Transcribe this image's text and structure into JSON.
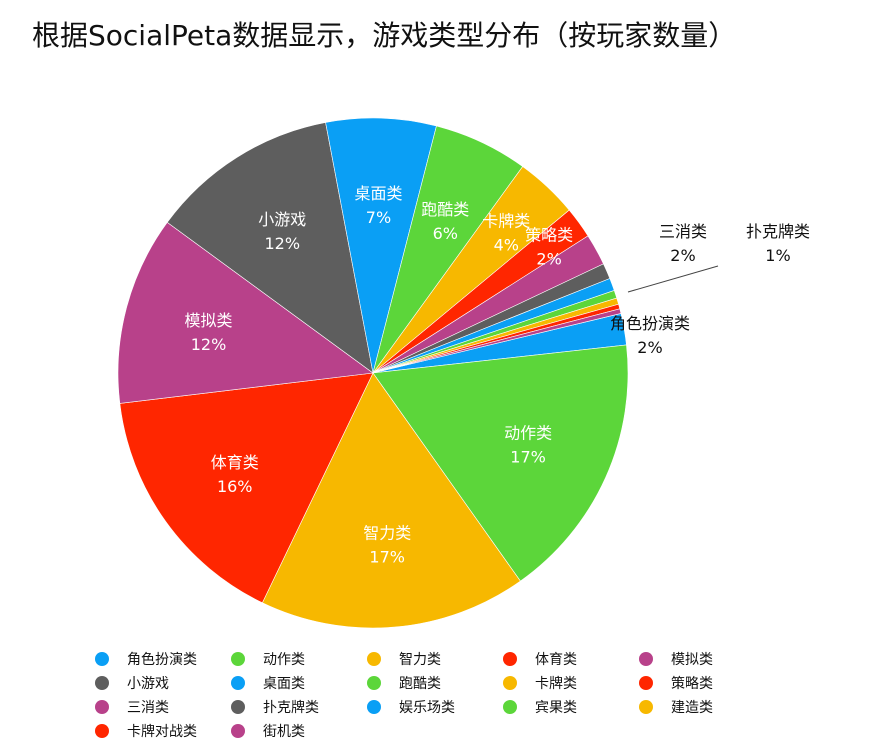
{
  "title": "根据SocialPeta数据显示，游戏类型分布（按玩家数量）",
  "chart_data": {
    "type": "pie",
    "slices": [
      {
        "name": "角色扮演类",
        "value": 2,
        "label": "2%",
        "color": "#0a9ff5"
      },
      {
        "name": "动作类",
        "value": 17,
        "label": "17%",
        "color": "#5cd63a"
      },
      {
        "name": "智力类",
        "value": 17,
        "label": "17%",
        "color": "#f7b800"
      },
      {
        "name": "体育类",
        "value": 16,
        "label": "16%",
        "color": "#ff2600"
      },
      {
        "name": "模拟类",
        "value": 12,
        "label": "12%",
        "color": "#b8418a"
      },
      {
        "name": "小游戏",
        "value": 12,
        "label": "12%",
        "color": "#5e5e5e"
      },
      {
        "name": "桌面类",
        "value": 7,
        "label": "7%",
        "color": "#0a9ff5"
      },
      {
        "name": "跑酷类",
        "value": 6,
        "label": "6%",
        "color": "#5cd63a"
      },
      {
        "name": "卡牌类",
        "value": 4,
        "label": "4%",
        "color": "#f7b800"
      },
      {
        "name": "策略类",
        "value": 2,
        "label": "2%",
        "color": "#ff2600"
      },
      {
        "name": "三消类",
        "value": 2,
        "label": "2%",
        "color": "#b8418a"
      },
      {
        "name": "扑克牌类",
        "value": 1,
        "label": "1%",
        "color": "#5e5e5e"
      },
      {
        "name": "娱乐场类",
        "value": 0.8,
        "label": "",
        "color": "#0a9ff5"
      },
      {
        "name": "宾果类",
        "value": 0.5,
        "label": "",
        "color": "#5cd63a"
      },
      {
        "name": "建造类",
        "value": 0.4,
        "label": "",
        "color": "#f7b800"
      },
      {
        "name": "卡牌对战类",
        "value": 0.3,
        "label": "",
        "color": "#ff2600"
      },
      {
        "name": "街机类",
        "value": 0.3,
        "label": "",
        "color": "#b8418a"
      }
    ],
    "legend_position": "bottom"
  }
}
